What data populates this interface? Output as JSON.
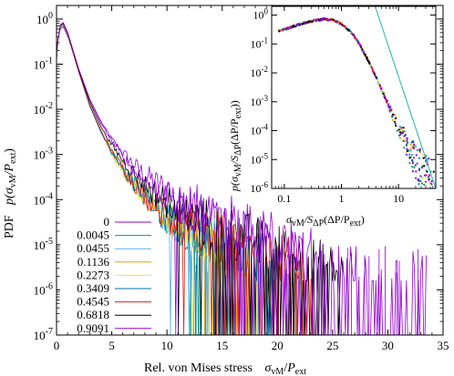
{
  "chart_data": [
    {
      "type": "line",
      "xlabel_text": "Rel. von Mises stress",
      "xlabel_math": "σ",
      "xlabel_math_sub": "vM",
      "xlabel_math_div": "/",
      "xlabel_math_P": "P",
      "xlabel_math_P_sub": "ext",
      "ylabel_text": "PDF",
      "ylabel_math": "p(σ",
      "ylabel_math_sub": "vM",
      "ylabel_math_rest": "/P",
      "ylabel_math_P_sub": "ext",
      "ylabel_math_close": ")",
      "xlim": [
        0,
        35
      ],
      "ylim": [
        1e-07,
        2
      ],
      "yscale": "log",
      "xticks": [
        "0",
        "5",
        "10",
        "15",
        "20",
        "25",
        "30",
        "35"
      ],
      "yticks": [
        {
          "base": "10",
          "exp": "0"
        },
        {
          "base": "10",
          "exp": "-1"
        },
        {
          "base": "10",
          "exp": "-2"
        },
        {
          "base": "10",
          "exp": "-3"
        },
        {
          "base": "10",
          "exp": "-4"
        },
        {
          "base": "10",
          "exp": "-5"
        },
        {
          "base": "10",
          "exp": "-6"
        },
        {
          "base": "10",
          "exp": "-7"
        }
      ],
      "legend_position": "bottom-left",
      "series": [
        {
          "name": "0",
          "color": "#9400d3",
          "peak_x": 0.6,
          "peak_y": 0.68,
          "tail_x": [
            0.6,
            1,
            2,
            3,
            4,
            5,
            6,
            7,
            8,
            9,
            10,
            11,
            12,
            13
          ],
          "tail_y": [
            0.68,
            0.42,
            0.078,
            0.017,
            0.0055,
            0.0022,
            0.0011,
            0.0006,
            0.00036,
            0.00024,
            0.00017,
            0.00011,
            8e-05,
            6e-05
          ],
          "cutoff": 22.5
        },
        {
          "name": "0.0045",
          "color": "#009e73",
          "peak_x": 0.6,
          "peak_y": 0.73,
          "tail_x": [
            0.6,
            1,
            2,
            3,
            4,
            5,
            6,
            7,
            8,
            9,
            10,
            11
          ],
          "tail_y": [
            0.73,
            0.45,
            0.072,
            0.013,
            0.0035,
            0.0012,
            0.0005,
            0.00022,
            0.00012,
            7e-05,
            4e-05,
            2.5e-05
          ],
          "cutoff": 17.0
        },
        {
          "name": "0.0455",
          "color": "#56b4e9",
          "peak_x": 0.6,
          "peak_y": 0.74,
          "tail_x": [
            0.6,
            1,
            2,
            3,
            4,
            5,
            6,
            7,
            8,
            9,
            10,
            11
          ],
          "tail_y": [
            0.74,
            0.45,
            0.07,
            0.0125,
            0.0033,
            0.0011,
            0.00045,
            0.0002,
            0.00011,
            6.5e-05,
            4e-05,
            2.5e-05
          ],
          "cutoff": 14.5
        },
        {
          "name": "0.1136",
          "color": "#e69f00",
          "peak_x": 0.6,
          "peak_y": 0.75,
          "tail_x": [
            0.6,
            1,
            2,
            3,
            4,
            5,
            6,
            7,
            8,
            9,
            10,
            11
          ],
          "tail_y": [
            0.75,
            0.46,
            0.07,
            0.012,
            0.0032,
            0.0011,
            0.00045,
            0.0002,
            0.00011,
            6e-05,
            4e-05,
            2.5e-05
          ],
          "cutoff": 17.5
        },
        {
          "name": "0.2273",
          "color": "#f0e442",
          "peak_x": 0.6,
          "peak_y": 0.76,
          "tail_x": [
            0.6,
            1,
            2,
            3,
            4,
            5,
            6,
            7,
            8,
            9,
            10,
            11
          ],
          "tail_y": [
            0.76,
            0.46,
            0.068,
            0.012,
            0.0032,
            0.0011,
            0.00045,
            0.0002,
            0.00011,
            6e-05,
            4e-05,
            2.5e-05
          ],
          "cutoff": 18.5
        },
        {
          "name": "0.3409",
          "color": "#0072b2",
          "peak_x": 0.6,
          "peak_y": 0.78,
          "tail_x": [
            0.6,
            1,
            2,
            3,
            4,
            5,
            6,
            7,
            8,
            9,
            10,
            11
          ],
          "tail_y": [
            0.78,
            0.47,
            0.068,
            0.012,
            0.0032,
            0.0011,
            0.00046,
            0.00021,
            0.00011,
            6.5e-05,
            4e-05,
            2.5e-05
          ],
          "cutoff": 20.5
        },
        {
          "name": "0.4545",
          "color": "#e51e10",
          "peak_x": 0.6,
          "peak_y": 0.8,
          "tail_x": [
            0.6,
            1,
            2,
            3,
            4,
            5,
            6,
            7,
            8,
            9,
            10,
            11
          ],
          "tail_y": [
            0.8,
            0.48,
            0.07,
            0.013,
            0.0034,
            0.0012,
            0.0005,
            0.00023,
            0.00012,
            7e-05,
            4.5e-05,
            3e-05
          ],
          "cutoff": 24.0
        },
        {
          "name": "0.6818",
          "color": "#000000",
          "peak_x": 0.6,
          "peak_y": 0.82,
          "tail_x": [
            0.6,
            1,
            2,
            3,
            4,
            5,
            6,
            7,
            8,
            9,
            10,
            11,
            12
          ],
          "tail_y": [
            0.82,
            0.5,
            0.075,
            0.015,
            0.0042,
            0.0016,
            0.00075,
            0.00038,
            0.00022,
            0.00013,
            9e-05,
            6e-05,
            4e-05
          ],
          "cutoff": 26.0
        },
        {
          "name": "0.9091",
          "color": "#9400d3",
          "peak_x": 0.6,
          "peak_y": 0.84,
          "tail_x": [
            0.6,
            1,
            2,
            3,
            4,
            5,
            6,
            7,
            8,
            9,
            10,
            11,
            12
          ],
          "tail_y": [
            0.84,
            0.52,
            0.08,
            0.017,
            0.005,
            0.002,
            0.0009,
            0.00045,
            0.00026,
            0.00016,
            0.00011,
            8e-05,
            6e-05
          ],
          "cutoff": 33.5
        }
      ]
    },
    {
      "type": "scatter",
      "xlabel_math": "σ",
      "xlabel_math_sub": "vM",
      "xlabel_math_rest": "/S",
      "xlabel_math_S_sub": "ΔP",
      "xlabel_math_tail": "(ΔP/P",
      "xlabel_math_P_sub": "ext",
      "xlabel_math_close": ")",
      "ylabel_math": "p(σ",
      "ylabel_math_sub": "vM",
      "ylabel_math_rest": "/S",
      "ylabel_math_S_sub": "ΔP",
      "ylabel_math_tail": "(ΔP/P",
      "ylabel_math_P_sub": "ext",
      "ylabel_math_close": "))",
      "xscale": "log",
      "yscale": "log",
      "xlim": [
        0.06,
        45
      ],
      "ylim": [
        1e-06,
        2
      ],
      "xticks": [
        "0.1",
        "1",
        "10"
      ],
      "yticks": [
        {
          "base": "10",
          "exp": "0"
        },
        {
          "base": "10",
          "exp": "-1"
        },
        {
          "base": "10",
          "exp": "-2"
        },
        {
          "base": "10",
          "exp": "-3"
        },
        {
          "base": "10",
          "exp": "-4"
        },
        {
          "base": "10",
          "exp": "-5"
        },
        {
          "base": "10",
          "exp": "-6"
        }
      ],
      "master_curve_x": [
        0.08,
        0.1,
        0.2,
        0.35,
        0.5,
        0.7,
        1,
        1.5,
        2,
        3,
        4,
        5,
        7,
        10,
        15,
        20,
        30,
        40
      ],
      "master_curve_y": [
        0.28,
        0.32,
        0.5,
        0.65,
        0.72,
        0.68,
        0.5,
        0.25,
        0.11,
        0.025,
        0.0075,
        0.0028,
        0.0006,
        0.00012,
        2.5e-05,
        8e-06,
        2.5e-06,
        1.2e-06
      ],
      "reference_line": {
        "color": "#20b2aa",
        "x": [
          3.9,
          45
        ],
        "y": [
          2,
          1e-06
        ]
      }
    }
  ]
}
